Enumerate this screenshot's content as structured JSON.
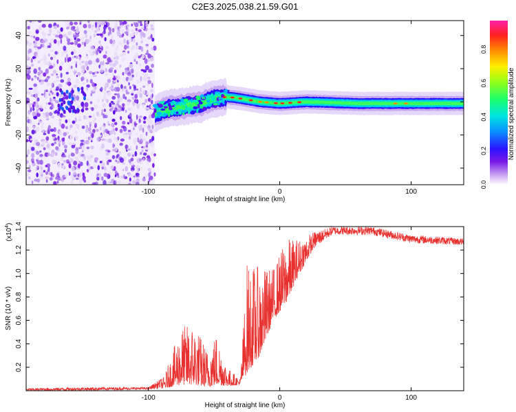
{
  "title": "C2E3.2025.038.21.59.G01",
  "chart_data": [
    {
      "type": "heatmap",
      "xlabel": "Height of straight line (km)",
      "ylabel": "Frequency (Hz)",
      "xlim": [
        -193,
        140
      ],
      "ylim": [
        -50,
        49
      ],
      "xticks": [
        -100,
        0,
        100
      ],
      "yticks": [
        -40,
        -20,
        0,
        20,
        40
      ],
      "colorbar": {
        "label": "Normalized spectral amplitude",
        "range": [
          0,
          0.97
        ],
        "ticks": [
          0.0,
          0.2,
          0.4,
          0.6,
          0.8
        ]
      },
      "features": {
        "noise_region_x": [
          -193,
          -95
        ],
        "signal_trace": [
          {
            "x": -95,
            "freq": -7
          },
          {
            "x": -85,
            "freq": -4
          },
          {
            "x": -75,
            "freq": -3
          },
          {
            "x": -60,
            "freq": -1
          },
          {
            "x": -50,
            "freq": 2
          },
          {
            "x": -40,
            "freq": 3
          },
          {
            "x": -30,
            "freq": 2
          },
          {
            "x": -15,
            "freq": 0
          },
          {
            "x": 0,
            "freq": -1
          },
          {
            "x": 20,
            "freq": 0
          },
          {
            "x": 60,
            "freq": -1
          },
          {
            "x": 100,
            "freq": -1
          },
          {
            "x": 140,
            "freq": -1
          }
        ]
      }
    },
    {
      "type": "line",
      "xlabel": "Height of straight line (km)",
      "ylabel": "SNR (10 * v/v)",
      "yscale_label": "(x10",
      "yscale_exp": "4",
      "yscale_close": ")",
      "xlim": [
        -193,
        140
      ],
      "ylim": [
        0,
        1.4
      ],
      "xticks": [
        -100,
        0,
        100
      ],
      "yticks": [
        0.2,
        0.4,
        0.6,
        0.8,
        1.0,
        1.2,
        1.4
      ],
      "color": "#e8312f",
      "series_envelope": [
        {
          "x": -193,
          "low": 0.0,
          "high": 0.02
        },
        {
          "x": -150,
          "low": 0.0,
          "high": 0.03
        },
        {
          "x": -100,
          "low": 0.01,
          "high": 0.03
        },
        {
          "x": -88,
          "low": 0.02,
          "high": 0.12
        },
        {
          "x": -75,
          "low": 0.05,
          "high": 0.55
        },
        {
          "x": -65,
          "low": 0.05,
          "high": 0.58
        },
        {
          "x": -55,
          "low": 0.03,
          "high": 0.35
        },
        {
          "x": -48,
          "low": 0.05,
          "high": 0.5
        },
        {
          "x": -40,
          "low": 0.04,
          "high": 0.2
        },
        {
          "x": -30,
          "low": 0.05,
          "high": 0.1
        },
        {
          "x": -25,
          "low": 0.15,
          "high": 1.1
        },
        {
          "x": -15,
          "low": 0.3,
          "high": 1.05
        },
        {
          "x": -5,
          "low": 0.6,
          "high": 1.05
        },
        {
          "x": 5,
          "low": 0.75,
          "high": 1.3
        },
        {
          "x": 15,
          "low": 1.0,
          "high": 1.3
        },
        {
          "x": 25,
          "low": 1.2,
          "high": 1.35
        },
        {
          "x": 40,
          "low": 1.33,
          "high": 1.4
        },
        {
          "x": 70,
          "low": 1.33,
          "high": 1.4
        },
        {
          "x": 100,
          "low": 1.26,
          "high": 1.33
        },
        {
          "x": 140,
          "low": 1.24,
          "high": 1.3
        }
      ]
    }
  ]
}
